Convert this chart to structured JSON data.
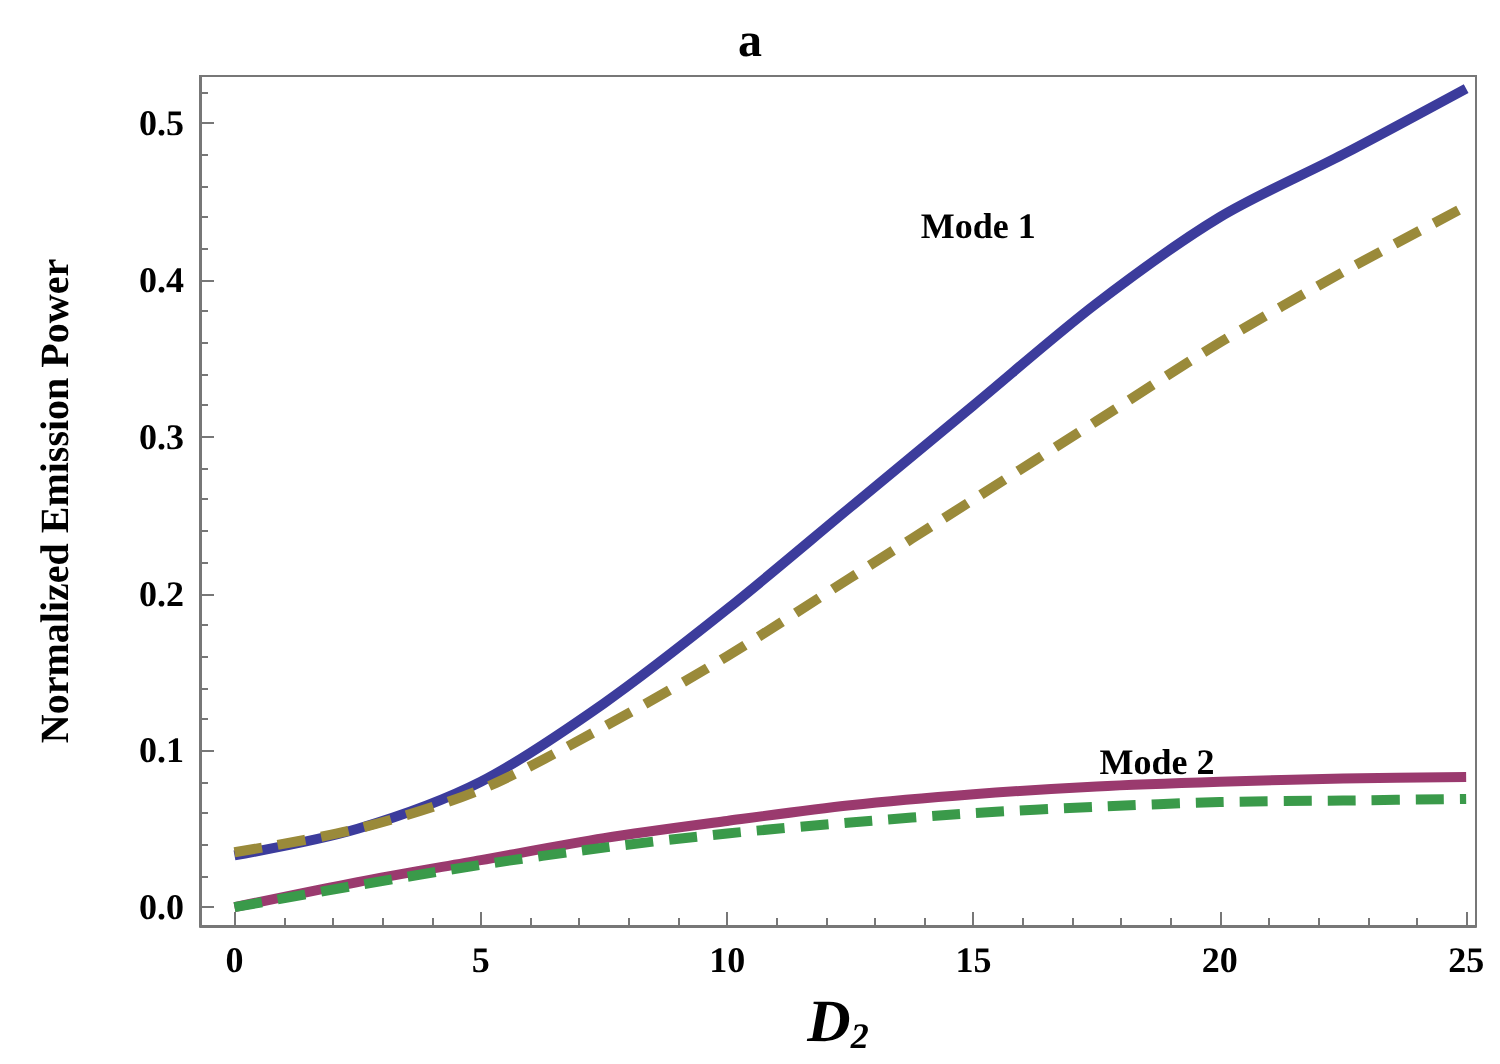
{
  "chart_data": {
    "type": "line",
    "title": "a",
    "xlabel": "D$_{2}$",
    "ylabel": "Normalized Emission Power",
    "x": [
      0,
      2.5,
      5,
      7.5,
      10,
      12.5,
      15,
      17.5,
      20,
      22.5,
      25
    ],
    "series": [
      {
        "color": "#3c3c9c",
        "line_style": "solid",
        "values": [
          0.033,
          0.05,
          0.08,
          0.13,
          0.19,
          0.255,
          0.32,
          0.385,
          0.44,
          0.48,
          0.522
        ]
      },
      {
        "color": "#9a8a3a",
        "line_style": "dashed",
        "values": [
          0.035,
          0.05,
          0.075,
          0.115,
          0.16,
          0.21,
          0.26,
          0.31,
          0.36,
          0.405,
          0.447
        ]
      },
      {
        "color": "#9a3a6e",
        "line_style": "solid",
        "values": [
          0,
          0.016,
          0.03,
          0.044,
          0.055,
          0.065,
          0.072,
          0.077,
          0.08,
          0.082,
          0.083
        ]
      },
      {
        "color": "#3a9a4a",
        "line_style": "dashed",
        "values": [
          0,
          0.014,
          0.027,
          0.038,
          0.047,
          0.054,
          0.06,
          0.064,
          0.067,
          0.068,
          0.069
        ]
      }
    ],
    "annotations": [
      "Mode 1",
      "Mode 2"
    ],
    "xlim": [
      -0.7,
      25.2
    ],
    "xticks": [
      0,
      5,
      10,
      15,
      20,
      25
    ],
    "ylim": [
      -0.012,
      0.53
    ],
    "yticks": [
      {
        "value": 0,
        "label": "0.0"
      },
      0.1,
      0.2,
      0.3,
      0.4,
      0.5
    ],
    "grid": false,
    "marker": "none"
  }
}
